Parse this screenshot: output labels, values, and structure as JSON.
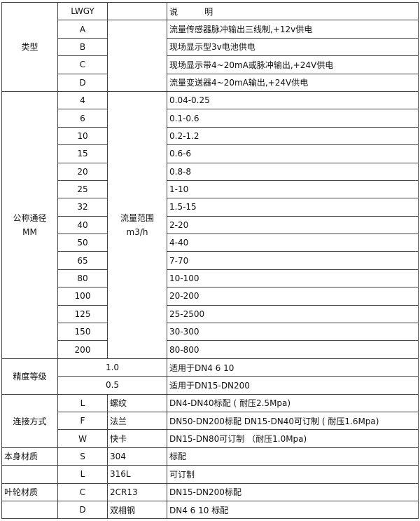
{
  "header": {
    "code": "LWGY",
    "desc": "说          明"
  },
  "type": {
    "label": "类型",
    "rows": [
      {
        "code": "A",
        "desc": "流量传感器脉冲输出三线制,+12v供电"
      },
      {
        "code": "B",
        "desc": "现场显示型3v电池供电"
      },
      {
        "code": "C",
        "desc": "现场显示带4~20mA或脉冲输出,+24V供电"
      },
      {
        "code": "D",
        "desc": "流量变送器4~20mA输出,+24V供电"
      }
    ]
  },
  "diameter": {
    "label": "公称通径",
    "unit": "MM",
    "range_label": "流量范围",
    "range_unit": "m3/h",
    "rows": [
      {
        "dn": "4",
        "range": "0.04-0.25"
      },
      {
        "dn": "6",
        "range": "0.1-0.6"
      },
      {
        "dn": "10",
        "range": "0.2-1.2"
      },
      {
        "dn": "15",
        "range": "0.6-6"
      },
      {
        "dn": "20",
        "range": "0.8-8"
      },
      {
        "dn": "25",
        "range": "1-10"
      },
      {
        "dn": "32",
        "range": "1.5-15"
      },
      {
        "dn": "40",
        "range": "2-20"
      },
      {
        "dn": "50",
        "range": "4-40"
      },
      {
        "dn": "65",
        "range": "7-70"
      },
      {
        "dn": "80",
        "range": "10-100"
      },
      {
        "dn": "100",
        "range": "20-200"
      },
      {
        "dn": "125",
        "range": "25-2500"
      },
      {
        "dn": "150",
        "range": "30-300"
      },
      {
        "dn": "200",
        "range": "80-800"
      }
    ]
  },
  "accuracy": {
    "label": "精度等级",
    "rows": [
      {
        "grade": "1.0",
        "desc": "适用于DN4  6  10"
      },
      {
        "grade": "0.5",
        "desc": "适用于DN15-DN200"
      }
    ]
  },
  "connection": {
    "label": "连接方式",
    "rows": [
      {
        "code": "L",
        "name": "螺纹",
        "desc": "DN4-DN40标配 ( 耐压2.5Mpa)"
      },
      {
        "code": "F",
        "name": "法兰",
        "desc": "DN50-DN200标配 DN15-DN40可订制 ( 耐压1.6Mpa)"
      },
      {
        "code": "W",
        "name": "快卡",
        "desc": "DN15-DN80可订制 （耐压1.0Mpa)"
      }
    ]
  },
  "body_material": {
    "label": "本身材质",
    "rows": [
      {
        "code": "S",
        "name": "304",
        "desc": "标配"
      },
      {
        "code": "L",
        "name": "316L",
        "desc": "可订制"
      }
    ]
  },
  "impeller_material": {
    "label": "叶轮材质",
    "rows": [
      {
        "code": "C",
        "name": "2CR13",
        "desc": "DN15-DN200标配"
      },
      {
        "code": "D",
        "name": "双相钢",
        "desc": "DN4 6 10 标配"
      }
    ]
  }
}
